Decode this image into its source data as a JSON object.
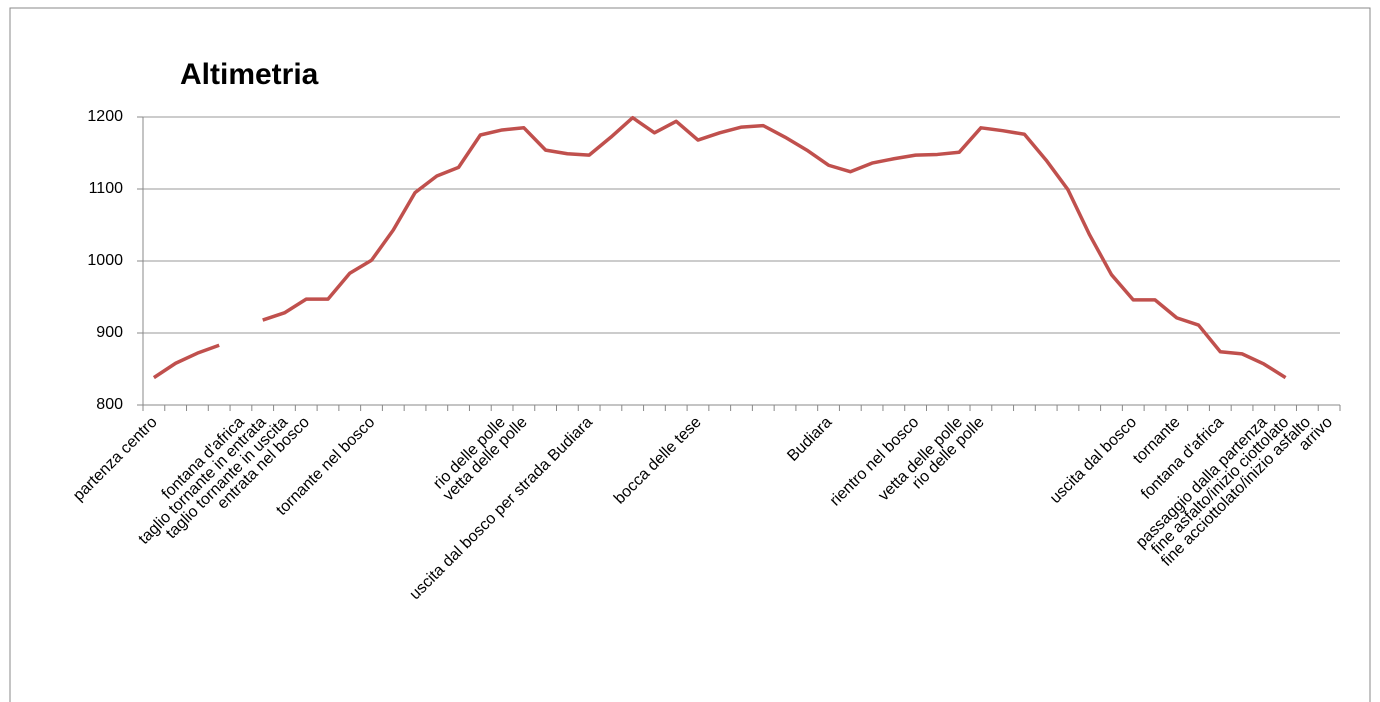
{
  "chart_data": {
    "type": "line",
    "title": "Altimetria",
    "categories": [
      "partenza centro",
      null,
      null,
      null,
      "fontana d'africa",
      "taglio tornante in entrata",
      "taglio tornante in uscita",
      "entrata nel bosco",
      null,
      null,
      "tornante nel bosco",
      null,
      null,
      null,
      null,
      null,
      "rio delle polle",
      "vetta delle polle",
      null,
      null,
      "uscita dal bosco per strada Budiara",
      null,
      null,
      null,
      null,
      "bocca delle tese",
      null,
      null,
      null,
      null,
      null,
      "Budiara",
      null,
      null,
      null,
      "rientro nel bosco",
      null,
      "vetta delle polle",
      "rio delle polle",
      null,
      null,
      null,
      null,
      null,
      null,
      "uscita dal bosco",
      null,
      "tornante",
      null,
      "fontana d'africa",
      null,
      "passaggio dalla partenza",
      "fine asfalto/inizio ciottolato",
      "fine acciottolato/inizio asfalto",
      "arrivo"
    ],
    "series": [
      {
        "name": "Altimetria",
        "color": "#c0504d",
        "values": [
          838,
          858,
          872,
          883,
          null,
          918,
          928,
          947,
          947,
          983,
          1001,
          1043,
          1095,
          1118,
          1130,
          1175,
          1182,
          1185,
          1154,
          1149,
          1147,
          1172,
          1199,
          1178,
          1194,
          1168,
          1178,
          1186,
          1188,
          1172,
          1154,
          1133,
          1124,
          1136,
          1142,
          1147,
          1148,
          1151,
          1185,
          1181,
          1176,
          1140,
          1099,
          1036,
          981,
          946,
          946,
          921,
          911,
          874,
          871,
          857,
          838,
          null,
          null
        ]
      }
    ],
    "ylim": [
      800,
      1200
    ],
    "yticks": [
      800,
      900,
      1000,
      1100,
      1200
    ],
    "grid": true
  }
}
